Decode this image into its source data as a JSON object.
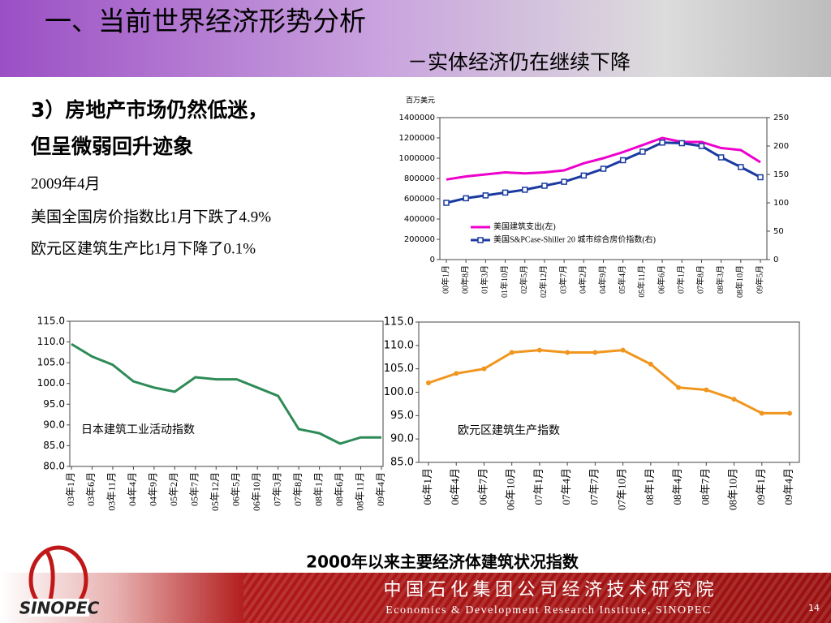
{
  "header": {
    "title": "一、当前世界经济形势分析",
    "subtitle": "－实体经济仍在继续下降"
  },
  "text": {
    "heading": [
      "3）房地产市场仍然低迷，",
      "但呈微弱回升迹象"
    ],
    "lines": [
      "2009年4月",
      "美国全国房价指数比1月下跌了4.9%",
      "欧元区建筑生产比1月下降了0.1%"
    ]
  },
  "chart_data": [
    {
      "type": "line",
      "y_label": "百万美元",
      "categories": [
        "00年1月",
        "00年8月",
        "01年3月",
        "01年10月",
        "02年5月",
        "02年12月",
        "03年7月",
        "04年2月",
        "04年9月",
        "05年4月",
        "05年11月",
        "06年6月",
        "07年1月",
        "07年8月",
        "08年3月",
        "08年10月",
        "09年5月"
      ],
      "ylim": [
        0,
        1400000
      ],
      "yticks": [
        0,
        200000,
        400000,
        600000,
        800000,
        1000000,
        1200000,
        1400000
      ],
      "y2lim": [
        0,
        250
      ],
      "y2ticks": [
        0,
        50,
        100,
        150,
        200,
        250
      ],
      "legend": "lower-left",
      "series": [
        {
          "name": "美国建筑支出(左)",
          "color": "#ee00cc",
          "marker": "none",
          "values": [
            790000,
            820000,
            840000,
            860000,
            850000,
            860000,
            880000,
            950000,
            1000000,
            1060000,
            1130000,
            1200000,
            1160000,
            1160000,
            1100000,
            1080000,
            960000
          ]
        },
        {
          "name": "美国S&PCase-Shiller 20 城市综合房价指数(右)",
          "color": "#1a3aa0",
          "marker": "square",
          "axis": "y2",
          "values": [
            100,
            108,
            113,
            118,
            123,
            130,
            137,
            148,
            160,
            175,
            190,
            206,
            205,
            200,
            180,
            163,
            145
          ]
        }
      ]
    },
    {
      "type": "line",
      "title": "日本建筑工业活动指数",
      "categories": [
        "03年1月",
        "03年6月",
        "03年11月",
        "04年4月",
        "04年9月",
        "05年2月",
        "05年7月",
        "05年12月",
        "06年5月",
        "06年10月",
        "07年3月",
        "07年8月",
        "08年1月",
        "08年6月",
        "08年11月",
        "09年4月"
      ],
      "ylim": [
        80,
        115
      ],
      "yticks": [
        {
          "value": 80,
          "label": "80.0"
        },
        {
          "value": 85,
          "label": "85.0"
        },
        {
          "value": 90,
          "label": "90.0"
        },
        {
          "value": 95,
          "label": "95.0"
        },
        {
          "value": 100,
          "label": "100.0"
        },
        {
          "value": 105,
          "label": "105.0"
        },
        {
          "value": 110,
          "label": "110.0"
        },
        {
          "value": 115,
          "label": "115.0"
        }
      ],
      "series": [
        {
          "name": null,
          "color": "#2e8b57",
          "marker": "none",
          "values": [
            109.5,
            106.5,
            104.5,
            100.5,
            99,
            98,
            101.5,
            101,
            101,
            99,
            97,
            89,
            88,
            85.5,
            87,
            87
          ]
        }
      ]
    },
    {
      "type": "line",
      "title": "欧元区建筑生产指数",
      "categories": [
        "06年1月",
        "06年4月",
        "06年7月",
        "06年10月",
        "07年1月",
        "07年4月",
        "07年7月",
        "07年10月",
        "08年1月",
        "08年4月",
        "08年7月",
        "08年10月",
        "09年1月",
        "09年4月"
      ],
      "ylim": [
        85,
        115
      ],
      "yticks": [
        {
          "value": 85,
          "label": "85.0"
        },
        {
          "value": 90,
          "label": "90.0"
        },
        {
          "value": 95,
          "label": "95.0"
        },
        {
          "value": 100,
          "label": "100.0"
        },
        {
          "value": 105,
          "label": "105.0"
        },
        {
          "value": 110,
          "label": "110.0"
        },
        {
          "value": 115,
          "label": "115.0"
        }
      ],
      "series": [
        {
          "name": null,
          "color": "#f0961e",
          "marker": "circle",
          "values": [
            102,
            104,
            105,
            108.5,
            109,
            108.5,
            108.5,
            109,
            106,
            101,
            100.5,
            98.5,
            95.5,
            95.5
          ]
        }
      ]
    }
  ],
  "caption": "2000年以来主要经济体建筑状况指数",
  "footer": {
    "cn": "中 国 石 化 集 团 公 司 经 济 技 术 研 究 院",
    "en": "Economics & Development Research Institute, SINOPEC",
    "page": "14"
  }
}
